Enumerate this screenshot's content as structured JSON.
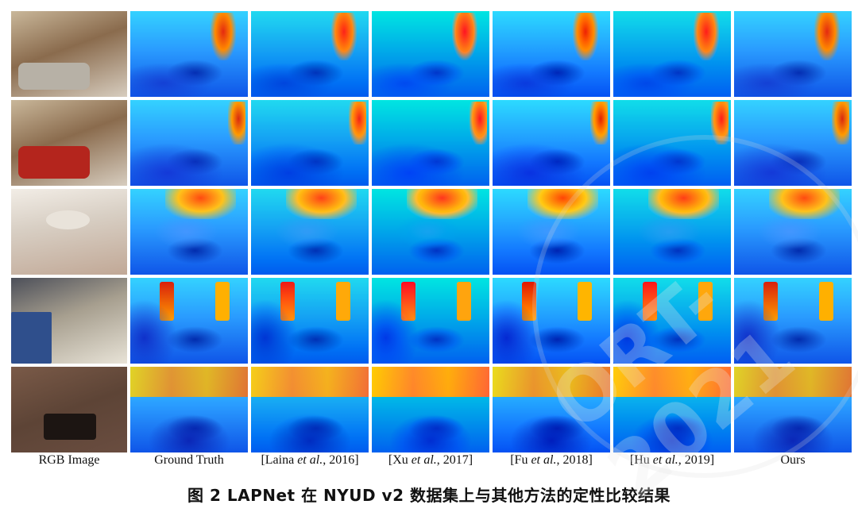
{
  "figure": {
    "columns": [
      {
        "label": "RGB Image"
      },
      {
        "label": "Ground Truth"
      },
      {
        "pre": "[Laina ",
        "etal": "et al.",
        "post": ", 2016]"
      },
      {
        "pre": "[Xu ",
        "etal": "et al.",
        "post": ", 2017]"
      },
      {
        "pre": "[Fu ",
        "etal": "et al.",
        "post": ", 2018]"
      },
      {
        "pre": "[Hu ",
        "etal": "et al.",
        "post": ", 2019]"
      },
      {
        "label": "Ours"
      }
    ],
    "rows": 5,
    "caption": "图 2 LAPNet 在 NYUD v2 数据集上与其他方法的定性比较结果"
  },
  "watermark": {
    "text": "ORT-2021"
  }
}
